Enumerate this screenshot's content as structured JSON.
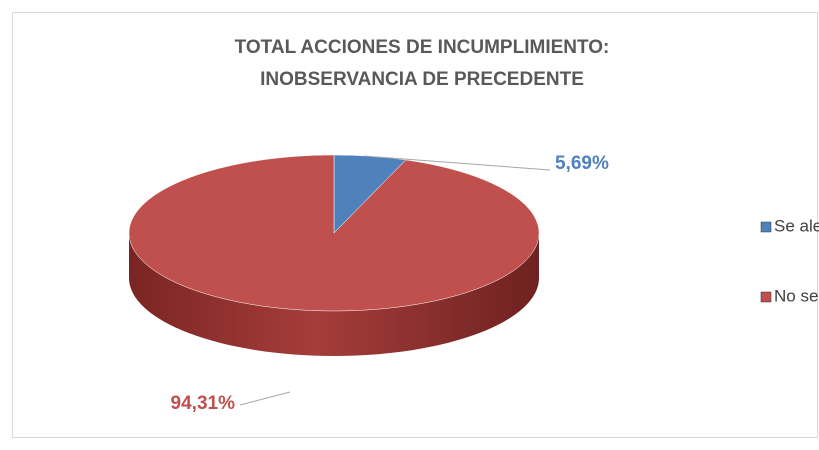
{
  "chart_data": {
    "type": "pie",
    "title": [
      "TOTAL ACCIONES DE INCUMPLIMIENTO:",
      "INOBSERVANCIA DE PRECEDENTE"
    ],
    "categories": [
      "Se alega",
      "No se alega"
    ],
    "values": [
      5.69,
      94.31
    ],
    "value_labels": [
      "5,69%",
      "94,31%"
    ],
    "colors": [
      "#4f81bd",
      "#c0504d"
    ],
    "legend": "right"
  }
}
